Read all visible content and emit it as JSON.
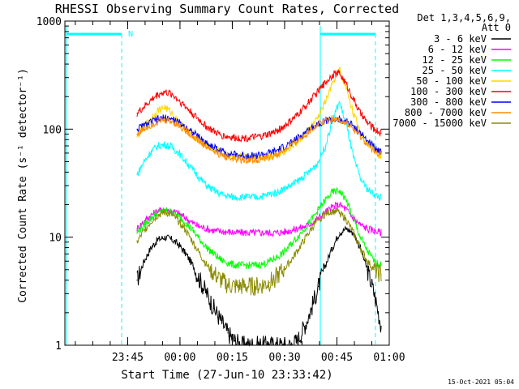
{
  "chart_data": {
    "type": "line",
    "title": "RHESSI Observing Summary Count Rates, Corrected",
    "xlabel": "Start Time (27-Jun-10 23:33:42)",
    "ylabel": "Corrected Count Rate (s⁻¹ detector⁻¹)",
    "yscale": "log",
    "ylim": [
      1,
      1000
    ],
    "xlim_minutes": [
      -6.7,
      86.3
    ],
    "y_ticks": [
      {
        "value": 1,
        "label": "1"
      },
      {
        "value": 10,
        "label": "10"
      },
      {
        "value": 100,
        "label": "100"
      },
      {
        "value": 1000,
        "label": "1000"
      }
    ],
    "x_ticks": [
      {
        "minute": 11.3,
        "label": "23:45"
      },
      {
        "minute": 26.3,
        "label": "00:00"
      },
      {
        "minute": 41.3,
        "label": "00:15"
      },
      {
        "minute": 56.3,
        "label": "00:30"
      },
      {
        "minute": 71.3,
        "label": "00:45"
      },
      {
        "minute": 86.3,
        "label": "01:00"
      }
    ],
    "legend_header": [
      "Det 1,3,4,5,6,9,",
      "Att 0"
    ],
    "legend_position": "right",
    "timestamp": "15-Oct-2021 05:04",
    "night_marker": "N",
    "series": [
      {
        "name": "3 - 6 keV",
        "color": "#000000",
        "x": [
          14,
          16,
          18,
          20,
          22,
          24,
          26,
          28,
          30,
          32,
          34,
          36,
          38,
          40,
          42,
          44,
          46,
          48,
          50,
          52,
          54,
          56,
          58,
          60,
          62,
          64,
          66,
          68,
          70,
          72,
          74,
          76,
          78,
          80,
          82,
          84
        ],
        "y": [
          4,
          6,
          8,
          9.5,
          10,
          9.5,
          8.5,
          7,
          5.5,
          4,
          3,
          2.2,
          1.7,
          1.3,
          1.1,
          1,
          1,
          1,
          1,
          1,
          1,
          1,
          1,
          1.1,
          1.5,
          2.2,
          3.5,
          5.5,
          8,
          11,
          12,
          11,
          8,
          5,
          3,
          1.5
        ]
      },
      {
        "name": "6 - 12 keV",
        "color": "#ff00ff",
        "x": [
          14,
          16,
          18,
          20,
          22,
          24,
          26,
          28,
          30,
          32,
          34,
          36,
          38,
          40,
          42,
          44,
          46,
          48,
          50,
          52,
          54,
          56,
          58,
          60,
          62,
          64,
          66,
          68,
          70,
          72,
          74,
          76,
          78,
          80,
          82,
          84
        ],
        "y": [
          12,
          14,
          16,
          17.5,
          18,
          17.5,
          16.5,
          15,
          13.5,
          12.5,
          12,
          11.5,
          11.3,
          11.2,
          11,
          11,
          11,
          11,
          11,
          11,
          11,
          11.2,
          11.5,
          12,
          12.5,
          13.5,
          15,
          17,
          19,
          20,
          18,
          15,
          13,
          12,
          11.5,
          11
        ]
      },
      {
        "name": "12 - 25 keV",
        "color": "#00ff00",
        "x": [
          14,
          16,
          18,
          20,
          22,
          24,
          26,
          28,
          30,
          32,
          34,
          36,
          38,
          40,
          42,
          44,
          46,
          48,
          50,
          52,
          54,
          56,
          58,
          60,
          62,
          64,
          66,
          68,
          70,
          72,
          74,
          76,
          78,
          80,
          82,
          84
        ],
        "y": [
          11,
          13,
          15,
          17,
          17.5,
          17,
          15.5,
          13.5,
          11.5,
          9.5,
          8,
          7,
          6.2,
          5.8,
          5.5,
          5.5,
          5.5,
          5.5,
          5.6,
          6,
          6.5,
          7.2,
          8.5,
          10,
          12,
          14.5,
          18,
          22,
          26,
          27,
          22,
          15,
          10,
          7.5,
          6,
          5.5
        ]
      },
      {
        "name": "25 - 50 keV",
        "color": "#00ffff",
        "x": [
          14,
          16,
          18,
          20,
          22,
          24,
          26,
          28,
          30,
          32,
          34,
          36,
          38,
          40,
          42,
          44,
          46,
          48,
          50,
          52,
          54,
          56,
          58,
          60,
          62,
          64,
          66,
          68,
          70,
          72,
          74,
          76,
          78,
          80,
          82,
          84
        ],
        "y": [
          38,
          50,
          62,
          70,
          72,
          68,
          60,
          50,
          42,
          35,
          30,
          27,
          25,
          24,
          23.5,
          23.5,
          23.5,
          23.5,
          24,
          25,
          26,
          28,
          30,
          33,
          37,
          42,
          50,
          70,
          120,
          180,
          110,
          55,
          35,
          28,
          25,
          23
        ]
      },
      {
        "name": "50 - 100 keV",
        "color": "#ffd700",
        "x": [
          14,
          16,
          18,
          20,
          22,
          24,
          26,
          28,
          30,
          32,
          34,
          36,
          38,
          40,
          42,
          44,
          46,
          48,
          50,
          52,
          54,
          56,
          58,
          60,
          62,
          64,
          66,
          68,
          70,
          72,
          74,
          76,
          78,
          80,
          82,
          84
        ],
        "y": [
          85,
          105,
          125,
          150,
          160,
          140,
          115,
          100,
          88,
          78,
          70,
          65,
          60,
          58,
          56,
          55,
          55,
          55,
          55,
          56,
          58,
          62,
          68,
          76,
          88,
          105,
          130,
          180,
          260,
          360,
          240,
          140,
          95,
          75,
          65,
          55
        ]
      },
      {
        "name": "100 - 300 keV",
        "color": "#ff0000",
        "x": [
          14,
          16,
          18,
          20,
          22,
          24,
          26,
          28,
          30,
          32,
          34,
          36,
          38,
          40,
          42,
          44,
          46,
          48,
          50,
          52,
          54,
          56,
          58,
          60,
          62,
          64,
          66,
          68,
          70,
          72,
          74,
          76,
          78,
          80,
          82,
          84
        ],
        "y": [
          140,
          160,
          185,
          210,
          220,
          210,
          185,
          160,
          138,
          120,
          105,
          95,
          88,
          85,
          83,
          83,
          83,
          84,
          86,
          90,
          96,
          105,
          118,
          135,
          160,
          190,
          225,
          270,
          320,
          330,
          260,
          190,
          140,
          115,
          100,
          92
        ]
      },
      {
        "name": "300 - 800 keV",
        "color": "#0000ff",
        "x": [
          14,
          16,
          18,
          20,
          22,
          24,
          26,
          28,
          30,
          32,
          34,
          36,
          38,
          40,
          42,
          44,
          46,
          48,
          50,
          52,
          54,
          56,
          58,
          60,
          62,
          64,
          66,
          68,
          70,
          72,
          74,
          76,
          78,
          80,
          82,
          84
        ],
        "y": [
          100,
          108,
          116,
          123,
          127,
          124,
          115,
          104,
          93,
          83,
          74,
          68,
          63,
          60,
          58,
          57,
          57,
          57,
          58,
          60,
          63,
          68,
          74,
          82,
          92,
          103,
          113,
          120,
          122,
          122,
          118,
          108,
          92,
          78,
          68,
          62
        ]
      },
      {
        "name": "800 - 7000 keV",
        "color": "#ff8c00",
        "x": [
          14,
          16,
          18,
          20,
          22,
          24,
          26,
          28,
          30,
          32,
          34,
          36,
          38,
          40,
          42,
          44,
          46,
          48,
          50,
          52,
          54,
          56,
          58,
          60,
          62,
          64,
          66,
          68,
          70,
          72,
          74,
          76,
          78,
          80,
          82,
          84
        ],
        "y": [
          90,
          100,
          110,
          118,
          121,
          118,
          108,
          97,
          86,
          76,
          68,
          62,
          58,
          55,
          53,
          52,
          52,
          52,
          53,
          55,
          58,
          63,
          70,
          78,
          88,
          100,
          112,
          120,
          125,
          122,
          112,
          100,
          85,
          72,
          63,
          58
        ]
      },
      {
        "name": "7000 - 15000 keV",
        "color": "#8b8b00",
        "x": [
          14,
          16,
          18,
          20,
          22,
          24,
          26,
          28,
          30,
          32,
          34,
          36,
          38,
          40,
          42,
          44,
          46,
          48,
          50,
          52,
          54,
          56,
          58,
          60,
          62,
          64,
          66,
          68,
          70,
          72,
          74,
          76,
          78,
          80,
          82,
          84
        ],
        "y": [
          9,
          11.5,
          14,
          16,
          17,
          16,
          14,
          11.5,
          9,
          7,
          5.5,
          4.6,
          4,
          3.6,
          3.5,
          3.5,
          3.5,
          3.5,
          3.6,
          3.8,
          4.3,
          5,
          6,
          7.5,
          9.5,
          12,
          14.5,
          16.5,
          17.5,
          17,
          14.5,
          11,
          8,
          6,
          5,
          4.5
        ]
      }
    ]
  }
}
